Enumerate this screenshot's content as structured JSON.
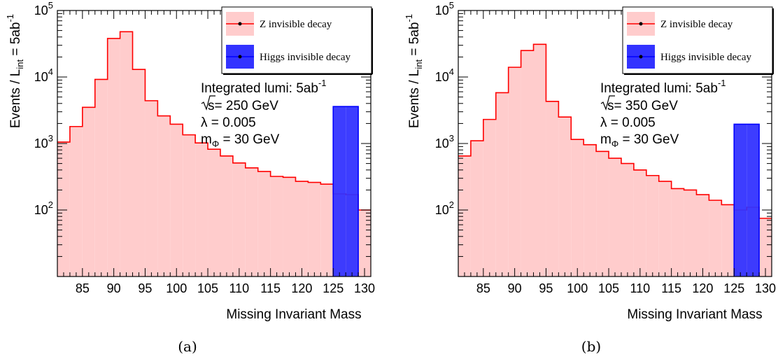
{
  "chart_data": [
    {
      "type": "histogram",
      "caption": "(a)",
      "xlabel": "Missing Invariant Mass",
      "ylabel": {
        "main": "Events / L",
        "sub": "int",
        "tail": " = 5ab",
        "sup": "-1"
      },
      "xlim": [
        81,
        131
      ],
      "ylim": [
        10,
        100000
      ],
      "log_y": true,
      "x_ticks": [
        "85",
        "90",
        "95",
        "100",
        "105",
        "110",
        "115",
        "120",
        "125",
        "130"
      ],
      "y_ticks": [
        {
          "value": 100,
          "base": "10",
          "exp": "2"
        },
        {
          "value": 1000,
          "base": "10",
          "exp": "3"
        },
        {
          "value": 10000,
          "base": "10",
          "exp": "4"
        },
        {
          "value": 100000,
          "base": "10",
          "exp": "5"
        }
      ],
      "bin_edges": [
        81,
        83,
        85,
        87,
        89,
        91,
        93,
        95,
        97,
        99,
        101,
        103,
        105,
        107,
        109,
        111,
        113,
        115,
        117,
        119,
        121,
        123,
        125,
        127,
        129,
        131
      ],
      "series": [
        {
          "name": "Z invisible decay",
          "color": "#ff0000",
          "fill": "#ffcccc",
          "values": [
            1050,
            1800,
            3500,
            9200,
            38000,
            48000,
            13000,
            4400,
            2600,
            1950,
            1350,
            1020,
            820,
            650,
            510,
            430,
            380,
            320,
            310,
            270,
            260,
            245,
            175,
            170,
            100
          ]
        },
        {
          "name": "Higgs invisible decay",
          "color": "#0000ff",
          "fill": "#3333ff",
          "values": [
            0,
            0,
            0,
            0,
            0,
            0,
            0,
            0,
            0,
            0,
            0,
            0,
            0,
            0,
            0,
            0,
            0,
            0,
            0,
            0,
            0,
            0,
            3600,
            3600,
            0
          ]
        }
      ],
      "annotation": {
        "lumi_label": "Integrated lumi: 5ab",
        "lumi_sup": "-1",
        "sqrt_label": "s= 250 GeV",
        "lambda_label": "λ = 0.005",
        "mass_main": "m",
        "mass_sub": "Φ",
        "mass_tail": " = 30 GeV"
      }
    },
    {
      "type": "histogram",
      "caption": "(b)",
      "xlabel": "Missing Invariant Mass",
      "ylabel": {
        "main": "Events / L",
        "sub": "int",
        "tail": " = 5ab",
        "sup": "-1"
      },
      "xlim": [
        81,
        131
      ],
      "ylim": [
        10,
        100000
      ],
      "log_y": true,
      "x_ticks": [
        "85",
        "90",
        "95",
        "100",
        "105",
        "110",
        "115",
        "120",
        "125",
        "130"
      ],
      "y_ticks": [
        {
          "value": 100,
          "base": "10",
          "exp": "2"
        },
        {
          "value": 1000,
          "base": "10",
          "exp": "3"
        },
        {
          "value": 10000,
          "base": "10",
          "exp": "4"
        },
        {
          "value": 100000,
          "base": "10",
          "exp": "5"
        }
      ],
      "bin_edges": [
        81,
        83,
        85,
        87,
        89,
        91,
        93,
        95,
        97,
        99,
        101,
        103,
        105,
        107,
        109,
        111,
        113,
        115,
        117,
        119,
        121,
        123,
        125,
        127,
        129,
        131
      ],
      "series": [
        {
          "name": "Z invisible decay",
          "color": "#ff0000",
          "fill": "#ffcccc",
          "values": [
            650,
            1100,
            2300,
            5800,
            14000,
            25000,
            31000,
            4300,
            2500,
            1150,
            960,
            760,
            600,
            500,
            400,
            330,
            270,
            210,
            200,
            170,
            140,
            120,
            100,
            110,
            75
          ]
        },
        {
          "name": "Higgs invisible decay",
          "color": "#0000ff",
          "fill": "#3333ff",
          "values": [
            0,
            0,
            0,
            0,
            0,
            0,
            0,
            0,
            0,
            0,
            0,
            0,
            0,
            0,
            0,
            0,
            0,
            0,
            0,
            0,
            0,
            0,
            1950,
            1950,
            0
          ]
        }
      ],
      "annotation": {
        "lumi_label": "Integrated lumi: 5ab",
        "lumi_sup": "-1",
        "sqrt_label": "s= 350 GeV",
        "lambda_label": "λ = 0.005",
        "mass_main": "m",
        "mass_sub": "Φ",
        "mass_tail": " = 30 GeV"
      }
    }
  ]
}
